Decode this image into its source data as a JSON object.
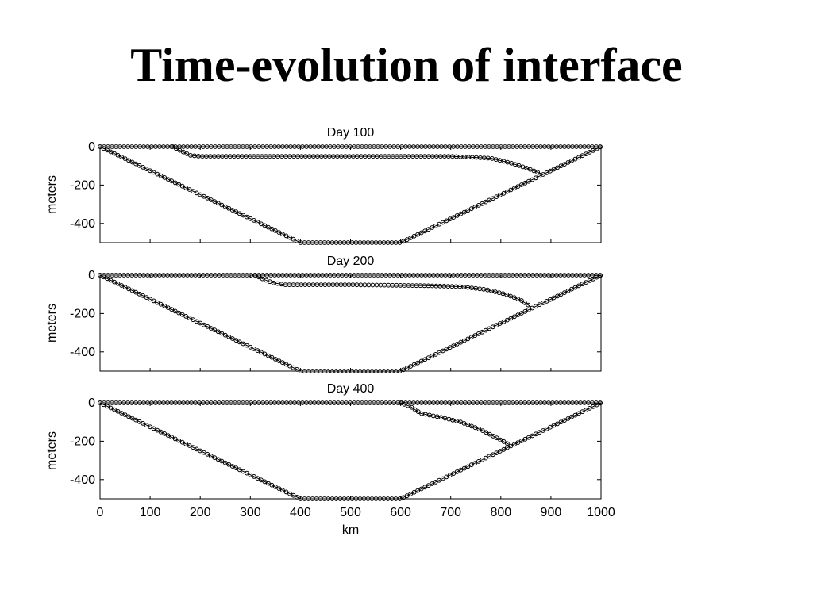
{
  "slide": {
    "title": "Time-evolution of interface"
  },
  "chart_data": [
    {
      "type": "line",
      "title": "Day 100",
      "ylabel": "meters",
      "xlabel": "",
      "xlim": [
        0,
        1000
      ],
      "ylim": [
        -500,
        0
      ],
      "yticks": [
        0,
        -200,
        -400
      ],
      "xticks": [],
      "series": [
        {
          "x": [
            0,
            1000
          ],
          "y": [
            0,
            0
          ]
        },
        {
          "x": [
            0,
            400,
            600,
            1000
          ],
          "y": [
            0,
            -500,
            -500,
            0
          ]
        },
        {
          "x": [
            145,
            160,
            180,
            200,
            300,
            500,
            700,
            780,
            820,
            850,
            880
          ],
          "y": [
            0,
            -20,
            -45,
            -50,
            -50,
            -50,
            -50,
            -60,
            -85,
            -110,
            -140
          ]
        }
      ]
    },
    {
      "type": "line",
      "title": "Day 200",
      "ylabel": "meters",
      "xlabel": "",
      "xlim": [
        0,
        1000
      ],
      "ylim": [
        -500,
        0
      ],
      "yticks": [
        0,
        -200,
        -400
      ],
      "xticks": [],
      "series": [
        {
          "x": [
            0,
            1000
          ],
          "y": [
            0,
            0
          ]
        },
        {
          "x": [
            0,
            400,
            600,
            1000
          ],
          "y": [
            0,
            -500,
            -500,
            0
          ]
        },
        {
          "x": [
            310,
            325,
            345,
            370,
            500,
            650,
            720,
            770,
            810,
            840,
            860
          ],
          "y": [
            0,
            -20,
            -40,
            -50,
            -50,
            -55,
            -60,
            -75,
            -100,
            -130,
            -165
          ]
        }
      ]
    },
    {
      "type": "line",
      "title": "Day 400",
      "ylabel": "meters",
      "xlabel": "km",
      "xlim": [
        0,
        1000
      ],
      "ylim": [
        -500,
        0
      ],
      "yticks": [
        0,
        -200,
        -400
      ],
      "xticks": [
        0,
        100,
        200,
        300,
        400,
        500,
        600,
        700,
        800,
        900,
        1000
      ],
      "series": [
        {
          "x": [
            0,
            1000
          ],
          "y": [
            0,
            0
          ]
        },
        {
          "x": [
            0,
            400,
            600,
            1000
          ],
          "y": [
            0,
            -500,
            -500,
            0
          ]
        },
        {
          "x": [
            600,
            620,
            640,
            680,
            720,
            760,
            790,
            815
          ],
          "y": [
            0,
            -20,
            -55,
            -75,
            -100,
            -140,
            -180,
            -215
          ]
        }
      ]
    }
  ]
}
